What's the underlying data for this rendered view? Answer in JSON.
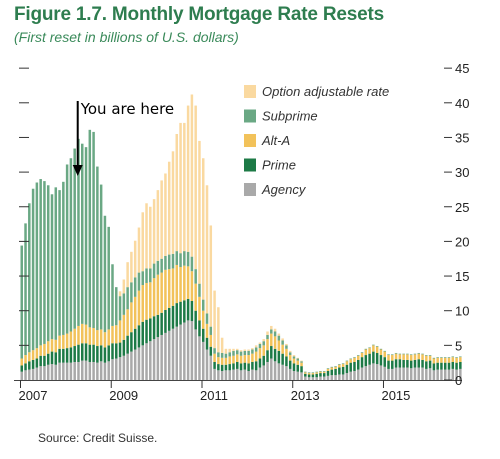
{
  "figure": {
    "title": "Figure 1.7. Monthly Mortgage Rate Resets",
    "subtitle": "(First reset in billions of U.S. dollars)",
    "source": "Source: Credit Suisse."
  },
  "annotation": {
    "text": "You are here",
    "year": 2008.25
  },
  "colors": {
    "option_arm": "#fad9a0",
    "subprime": "#6aa884",
    "alt_a": "#f2c25a",
    "prime": "#1d7a46",
    "agency": "#a9a9a9",
    "title_green": "#2e7d4f"
  },
  "chart_data": {
    "type": "bar",
    "stacked": true,
    "title": "Figure 1.7. Monthly Mortgage Rate Resets",
    "subtitle": "(First reset in billions of U.S. dollars)",
    "xlabel": "",
    "ylabel": "",
    "ylim": [
      0,
      45
    ],
    "yticks": [
      0,
      5,
      10,
      15,
      20,
      25,
      30,
      35,
      40,
      45
    ],
    "xticks": [
      "2007",
      "2009",
      "2011",
      "2013",
      "2015"
    ],
    "legend_position": "top-right",
    "x_start": "2007-01",
    "months": 117,
    "series": [
      {
        "name": "Agency",
        "color": "#a9a9a9",
        "values": [
          1.2,
          1.4,
          1.5,
          1.6,
          1.8,
          2.0,
          2.0,
          2.2,
          2.3,
          2.2,
          2.5,
          2.5,
          2.5,
          2.5,
          2.6,
          2.6,
          2.8,
          2.8,
          2.6,
          2.6,
          2.5,
          2.7,
          2.5,
          2.7,
          3,
          3.1,
          3.3,
          3.5,
          3.8,
          4.1,
          4.4,
          4.7,
          5,
          5.3,
          5.6,
          5.9,
          6.2,
          6.5,
          6.8,
          7.1,
          7.4,
          7.7,
          8,
          8.3,
          8.6,
          8.5,
          7.3,
          6.3,
          5.5,
          4.4,
          3.5,
          1.6,
          1.4,
          1.3,
          1.4,
          1.4,
          1.5,
          1.6,
          1.4,
          1.5,
          1.3,
          1.5,
          1.4,
          1.8,
          2.1,
          2.6,
          3.1,
          2.7,
          2.4,
          2.2,
          2.0,
          1.6,
          1.3,
          1.2,
          1.1,
          0.5,
          0.4,
          0.4,
          0.4,
          0.5,
          0.5,
          0.6,
          0.7,
          0.7,
          0.8,
          0.8,
          1.0,
          1.2,
          1.3,
          1.5,
          1.8,
          2.0,
          2.2,
          2.4,
          2.3,
          2.1,
          1.9,
          1.6,
          1.6,
          1.8,
          1.8,
          1.8,
          1.8,
          1.7,
          1.8,
          1.8,
          1.8,
          1.6,
          1.7,
          1.4,
          1.5,
          1.5,
          1.5,
          1.5,
          1.6,
          1.5,
          1.6
        ]
      },
      {
        "name": "Prime",
        "color": "#1d7a46",
        "values": [
          0.9,
          1.0,
          1.2,
          1.3,
          1.3,
          1.5,
          1.5,
          1.6,
          1.8,
          1.8,
          2.0,
          2.0,
          2.1,
          2.2,
          2.3,
          2.5,
          2.5,
          2.5,
          2.5,
          2.5,
          2.4,
          2.3,
          2.2,
          2.3,
          2.3,
          2.2,
          2.1,
          2.3,
          2.6,
          2.8,
          3.0,
          3.2,
          3.4,
          3.4,
          3.3,
          3.3,
          3.2,
          3.2,
          3.3,
          3.3,
          3.3,
          3.4,
          3.3,
          3.2,
          3.1,
          2.9,
          2.7,
          2.3,
          1.9,
          1.7,
          1.3,
          1.0,
          0.9,
          0.9,
          0.8,
          0.9,
          0.9,
          1.0,
          1.0,
          1.0,
          1.1,
          1.1,
          1.3,
          1.3,
          1.4,
          1.7,
          1.8,
          1.8,
          1.8,
          1.6,
          1.4,
          1.2,
          1.1,
          1.0,
          0.9,
          0.4,
          0.4,
          0.4,
          0.5,
          0.5,
          0.5,
          0.7,
          0.8,
          0.9,
          1.0,
          1.1,
          1.2,
          1.3,
          1.3,
          1.4,
          1.5,
          1.6,
          1.6,
          1.7,
          1.6,
          1.5,
          1.4,
          1.2,
          1.2,
          1.2,
          1.2,
          1.1,
          1.1,
          1.1,
          1.1,
          1.2,
          1.1,
          1.1,
          1.1,
          1.0,
          1.0,
          1.0,
          1.0,
          1.0,
          1.0,
          1.0,
          1.0
        ]
      },
      {
        "name": "Alt-A",
        "color": "#f2c25a",
        "values": [
          1.0,
          1.2,
          1.3,
          1.4,
          1.5,
          1.5,
          1.7,
          1.8,
          1.8,
          1.8,
          1.9,
          2.0,
          2.1,
          2.3,
          2.5,
          2.7,
          2.8,
          2.7,
          2.5,
          2.4,
          2.3,
          2.3,
          2.2,
          2.3,
          2.5,
          2.6,
          3.2,
          3.6,
          3.8,
          4.3,
          4.6,
          5.0,
          5.3,
          5.3,
          5.2,
          5.5,
          5.8,
          5.8,
          5.8,
          5.6,
          5.4,
          5.5,
          5.0,
          5.0,
          4.7,
          4.3,
          3.9,
          3.4,
          2.6,
          2.0,
          1.7,
          1.2,
          1.0,
          1.0,
          1.0,
          1.1,
          1.1,
          1.1,
          1.1,
          1.1,
          1.2,
          1.2,
          1.4,
          1.5,
          1.5,
          1.6,
          1.8,
          1.8,
          1.5,
          1.3,
          1.1,
          0.8,
          0.7,
          0.6,
          0.5,
          0.2,
          0.2,
          0.2,
          0.2,
          0.2,
          0.2,
          0.3,
          0.3,
          0.3,
          0.4,
          0.4,
          0.5,
          0.5,
          0.6,
          0.6,
          0.6,
          0.8,
          0.8,
          0.9,
          0.9,
          0.8,
          0.8,
          0.8,
          0.8,
          0.8,
          0.7,
          0.8,
          0.8,
          0.8,
          0.8,
          0.8,
          0.8,
          0.8,
          0.7,
          0.7,
          0.7,
          0.7,
          0.7,
          0.7,
          0.7,
          0.7,
          0.7
        ]
      },
      {
        "name": "Subprime",
        "color": "#6aa884",
        "values": [
          16.3,
          19.0,
          21.5,
          23.3,
          23.9,
          24.0,
          23.5,
          22.5,
          20.9,
          22.0,
          21.0,
          22.1,
          24.4,
          25.0,
          26.0,
          27.0,
          26.0,
          25.6,
          28.5,
          28.3,
          23.6,
          20.9,
          16.8,
          14.8,
          8.9,
          5.5,
          3.5,
          3.1,
          3.2,
          2.9,
          2.8,
          2.6,
          2.0,
          2.1,
          2.0,
          2.1,
          2.0,
          2.0,
          2.0,
          2.1,
          2.1,
          2.0,
          2.0,
          2.1,
          2.1,
          2.1,
          2.1,
          1.9,
          1.6,
          1.5,
          1.2,
          0.8,
          0.7,
          0.7,
          0.6,
          0.6,
          0.7,
          0.6,
          0.6,
          0.6,
          0.6,
          0.6,
          0.6,
          0.6,
          0.6,
          0.6,
          0.6,
          0.7,
          0.7,
          0.6,
          0.5,
          0.4,
          0.3,
          0.3,
          0.2,
          0.1,
          0.1,
          0.1,
          0.1,
          0.1,
          0.1,
          0.1,
          0.1,
          0.1,
          0.1,
          0.1,
          0.1,
          0.1,
          0.1,
          0.1,
          0.1,
          0.1,
          0.1,
          0.1,
          0.1,
          0.1,
          0.1,
          0.1,
          0.1,
          0.1,
          0.1,
          0.1,
          0.1,
          0.1,
          0.1,
          0.1,
          0.1,
          0.1,
          0.1,
          0.1,
          0.1,
          0.1,
          0.1,
          0.1,
          0.1,
          0.1,
          0.1
        ]
      },
      {
        "name": "Option adjustable rate",
        "color": "#fad9a0",
        "values": [
          0,
          0,
          0,
          0,
          0,
          0,
          0,
          0,
          0,
          0,
          0,
          0,
          0,
          0,
          0,
          0,
          0,
          0,
          0,
          0,
          0,
          0,
          0,
          0,
          0,
          0,
          0.7,
          2.0,
          3.6,
          4.4,
          5.3,
          6.5,
          8.5,
          9.4,
          8.9,
          9.3,
          10.2,
          11.3,
          11.9,
          13.4,
          14.8,
          16.9,
          18.8,
          18.5,
          21.1,
          23.4,
          23.6,
          20.6,
          20.4,
          18.5,
          14.6,
          8.3,
          6.5,
          2.2,
          0.7,
          0.5,
          0.3,
          0.2,
          0.2,
          0.2,
          0.2,
          0.2,
          0.3,
          0.2,
          0.3,
          0.5,
          0.5,
          0.4,
          0.3,
          0.3,
          0.2,
          0.2,
          0.2,
          0.1,
          0.1,
          0,
          0,
          0,
          0,
          0,
          0,
          0,
          0,
          0,
          0,
          0,
          0,
          0,
          0,
          0,
          0,
          0,
          0,
          0,
          0,
          0,
          0,
          0,
          0,
          0,
          0,
          0,
          0,
          0,
          0,
          0,
          0,
          0,
          0,
          0,
          0,
          0,
          0,
          0,
          0,
          0,
          0
        ]
      }
    ]
  }
}
